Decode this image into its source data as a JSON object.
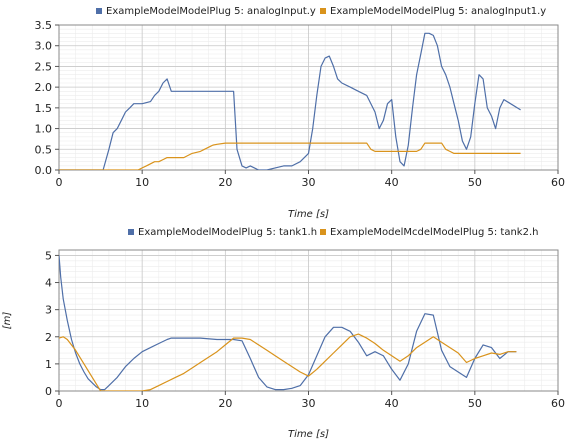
{
  "chart_data": [
    {
      "type": "line",
      "xlabel": "Time [s]",
      "ylabel": "",
      "xlim": [
        0,
        60
      ],
      "ylim": [
        0,
        3.5
      ],
      "xticks": [
        0,
        10,
        20,
        30,
        40,
        50,
        60
      ],
      "yticks": [
        0.0,
        0.5,
        1.0,
        1.5,
        2.0,
        2.5,
        3.0,
        3.5
      ],
      "ytick_labels": [
        "0.0",
        "0.5",
        "1.0",
        "1.5",
        "2.0",
        "2.5",
        "3.0",
        "3.5"
      ],
      "grid": true,
      "legend": "top",
      "series": [
        {
          "name": "ExampleModelModelPlug 5: analogInput.y",
          "color": "#4f6fa8",
          "x": [
            0,
            5.3,
            6,
            6.5,
            7,
            7.5,
            8,
            8.5,
            9,
            9.5,
            10,
            11,
            11.5,
            12,
            12.5,
            13,
            13.5,
            14,
            17,
            20,
            21,
            21.4,
            22,
            22.5,
            23,
            23.5,
            24,
            25,
            26,
            27,
            28,
            29,
            30,
            30.5,
            31,
            31.5,
            32,
            32.5,
            33,
            33.5,
            34,
            35,
            36,
            37,
            38,
            38.5,
            39,
            39.5,
            40,
            40.5,
            41,
            41.5,
            42,
            42.5,
            43,
            43.5,
            44,
            44.5,
            45,
            45.5,
            46,
            46.5,
            47,
            47.5,
            48,
            48.5,
            49,
            49.5,
            50,
            50.5,
            51,
            51.5,
            52,
            52.5,
            53,
            53.5,
            55.5
          ],
          "y": [
            0,
            0,
            0.5,
            0.9,
            1.0,
            1.2,
            1.4,
            1.5,
            1.6,
            1.6,
            1.6,
            1.65,
            1.8,
            1.9,
            2.1,
            2.2,
            1.9,
            1.9,
            1.9,
            1.9,
            1.9,
            0.5,
            0.1,
            0.05,
            0.1,
            0.05,
            0,
            0,
            0.05,
            0.1,
            0.1,
            0.2,
            0.4,
            1.0,
            1.8,
            2.5,
            2.7,
            2.75,
            2.5,
            2.2,
            2.1,
            2.0,
            1.9,
            1.8,
            1.4,
            1.0,
            1.2,
            1.6,
            1.7,
            0.8,
            0.2,
            0.1,
            0.6,
            1.5,
            2.3,
            2.8,
            3.3,
            3.3,
            3.25,
            3.0,
            2.5,
            2.3,
            2.0,
            1.6,
            1.2,
            0.7,
            0.5,
            0.8,
            1.6,
            2.3,
            2.2,
            1.5,
            1.3,
            1.0,
            1.5,
            1.7,
            1.45
          ]
        },
        {
          "name": "ExampleModelModelPlug 5: analogInput1.y",
          "color": "#d9931c",
          "x": [
            0,
            9.5,
            10,
            10.5,
            11,
            11.5,
            12,
            12.5,
            13,
            15,
            15.5,
            16,
            17,
            17.5,
            18,
            18.5,
            19,
            20,
            21,
            37,
            37.5,
            38,
            39,
            40,
            41,
            42,
            43,
            43.5,
            44,
            45,
            46,
            46.5,
            47,
            47.5,
            48,
            50,
            55.5
          ],
          "y": [
            0,
            0,
            0.05,
            0.1,
            0.15,
            0.2,
            0.2,
            0.25,
            0.3,
            0.3,
            0.35,
            0.4,
            0.45,
            0.5,
            0.55,
            0.6,
            0.62,
            0.65,
            0.65,
            0.65,
            0.5,
            0.45,
            0.45,
            0.45,
            0.45,
            0.45,
            0.45,
            0.5,
            0.65,
            0.65,
            0.65,
            0.5,
            0.45,
            0.4,
            0.4,
            0.4,
            0.4
          ]
        }
      ]
    },
    {
      "type": "line",
      "xlabel": "Time [s]",
      "ylabel": "[m]",
      "xlim": [
        0,
        60
      ],
      "ylim": [
        0,
        5.2
      ],
      "xticks": [
        0,
        10,
        20,
        30,
        40,
        50,
        60
      ],
      "yticks": [
        0,
        1,
        2,
        3,
        4,
        5
      ],
      "ytick_labels": [
        "0",
        "1",
        "2",
        "3",
        "4",
        "5"
      ],
      "grid": true,
      "legend": "top",
      "series": [
        {
          "name": "ExampleModelModelPlug 5: tank1.h",
          "color": "#4f6fa8",
          "x": [
            0,
            0.2,
            0.5,
            1,
            1.5,
            2,
            2.5,
            3,
            3.5,
            4,
            4.5,
            5,
            5.5,
            6,
            7,
            8,
            9,
            10,
            11,
            12,
            13,
            13.5,
            14,
            15,
            17,
            19,
            21,
            22,
            23,
            24,
            25,
            26,
            27,
            28,
            29,
            30,
            31,
            32,
            33,
            34,
            35,
            36,
            37,
            38,
            39,
            40,
            41,
            42,
            43,
            44,
            45,
            46,
            47,
            48,
            49,
            50,
            51,
            52,
            53,
            54,
            55
          ],
          "y": [
            5.0,
            4.2,
            3.4,
            2.6,
            1.9,
            1.4,
            1.0,
            0.7,
            0.45,
            0.3,
            0.15,
            0.05,
            0.05,
            0.2,
            0.5,
            0.9,
            1.2,
            1.45,
            1.6,
            1.75,
            1.9,
            1.95,
            1.95,
            1.95,
            1.95,
            1.9,
            1.9,
            1.85,
            1.2,
            0.5,
            0.15,
            0.05,
            0.05,
            0.1,
            0.2,
            0.6,
            1.3,
            2.0,
            2.35,
            2.35,
            2.2,
            1.8,
            1.3,
            1.45,
            1.3,
            0.8,
            0.4,
            1.0,
            2.2,
            2.85,
            2.8,
            1.5,
            0.9,
            0.7,
            0.5,
            1.2,
            1.7,
            1.6,
            1.2,
            1.45,
            1.45
          ]
        },
        {
          "name": "ExampleModelMcdelModelPlug 5: tank2.h",
          "color": "#d9931c",
          "x": [
            0,
            0.5,
            1,
            2,
            3,
            4,
            5,
            6,
            7,
            8,
            9,
            10,
            11,
            12,
            13,
            14,
            15,
            16,
            17,
            18,
            19,
            20,
            21,
            22,
            23,
            24,
            25,
            26,
            27,
            28,
            29,
            30,
            31,
            32,
            33,
            34,
            35,
            36,
            37,
            38,
            39,
            40,
            41,
            42,
            43,
            44,
            45,
            46,
            47,
            48,
            49,
            50,
            51,
            52,
            53,
            54,
            55
          ],
          "y": [
            1.95,
            2.0,
            1.9,
            1.5,
            1.0,
            0.5,
            0.0,
            0.0,
            0.0,
            0.0,
            0.0,
            0.0,
            0.05,
            0.2,
            0.35,
            0.5,
            0.65,
            0.85,
            1.05,
            1.25,
            1.45,
            1.7,
            1.95,
            1.95,
            1.9,
            1.7,
            1.5,
            1.3,
            1.1,
            0.9,
            0.7,
            0.55,
            0.8,
            1.1,
            1.4,
            1.7,
            2.0,
            2.1,
            1.95,
            1.75,
            1.5,
            1.3,
            1.1,
            1.3,
            1.6,
            1.8,
            2.0,
            1.8,
            1.6,
            1.4,
            1.05,
            1.2,
            1.3,
            1.4,
            1.35,
            1.45,
            1.45
          ]
        }
      ]
    }
  ]
}
